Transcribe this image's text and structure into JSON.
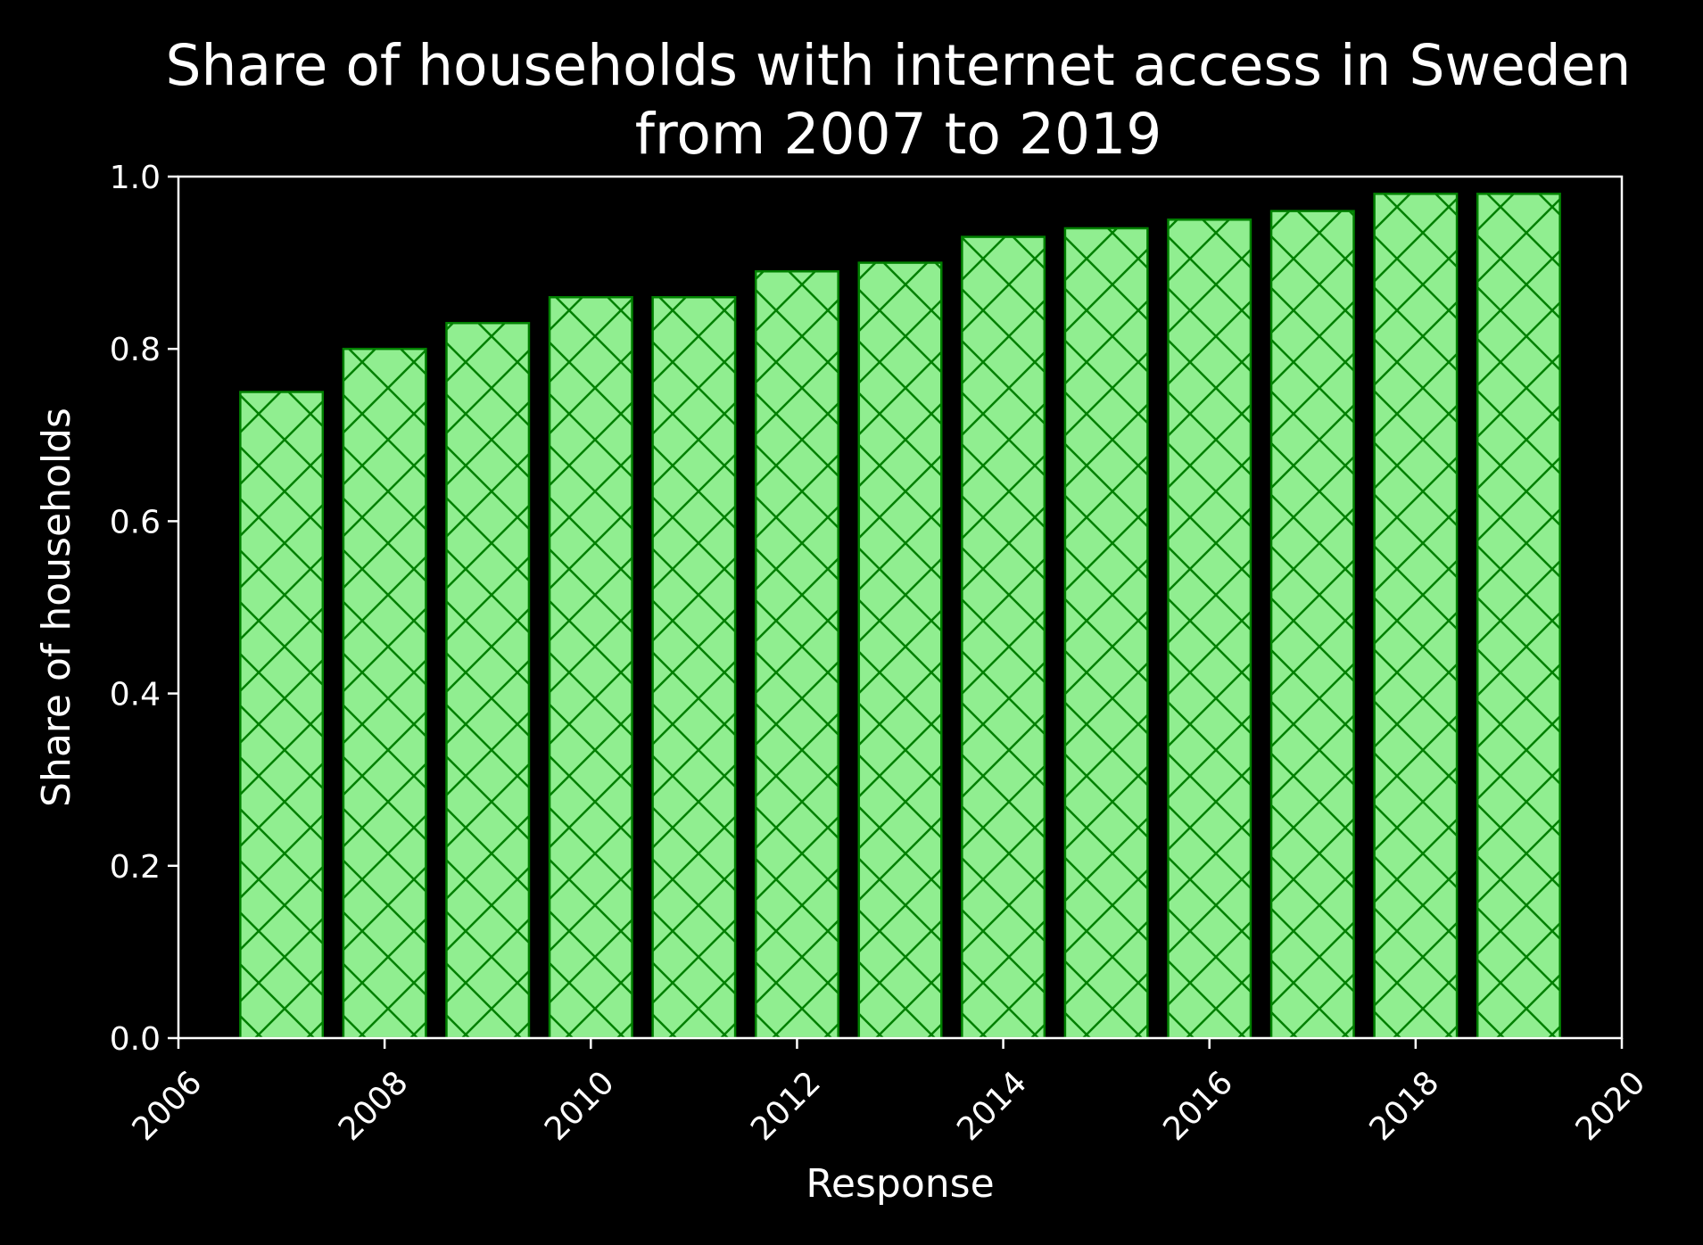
{
  "chart_data": {
    "type": "bar",
    "title": "Share of households with internet access in Sweden\nfrom 2007 to 2019",
    "xlabel": "Response",
    "ylabel": "Share of households",
    "x": [
      2007,
      2008,
      2009,
      2010,
      2011,
      2012,
      2013,
      2014,
      2015,
      2016,
      2017,
      2018,
      2019
    ],
    "values": [
      0.75,
      0.8,
      0.83,
      0.86,
      0.86,
      0.89,
      0.9,
      0.93,
      0.94,
      0.95,
      0.96,
      0.98,
      0.98
    ],
    "xlim": [
      2006,
      2020
    ],
    "ylim": [
      0,
      1.0
    ],
    "xticks": [
      "2006",
      "2008",
      "2010",
      "2012",
      "2014",
      "2016",
      "2018",
      "2020"
    ],
    "yticks": [
      "0.0",
      "0.2",
      "0.4",
      "0.6",
      "0.8",
      "1.0"
    ],
    "grid": false,
    "bar_fill_color": "#90ee90",
    "bar_edge_color": "#008000",
    "hatch": "cross-diagonal",
    "background_color": "#000000",
    "text_color": "#ffffff"
  }
}
